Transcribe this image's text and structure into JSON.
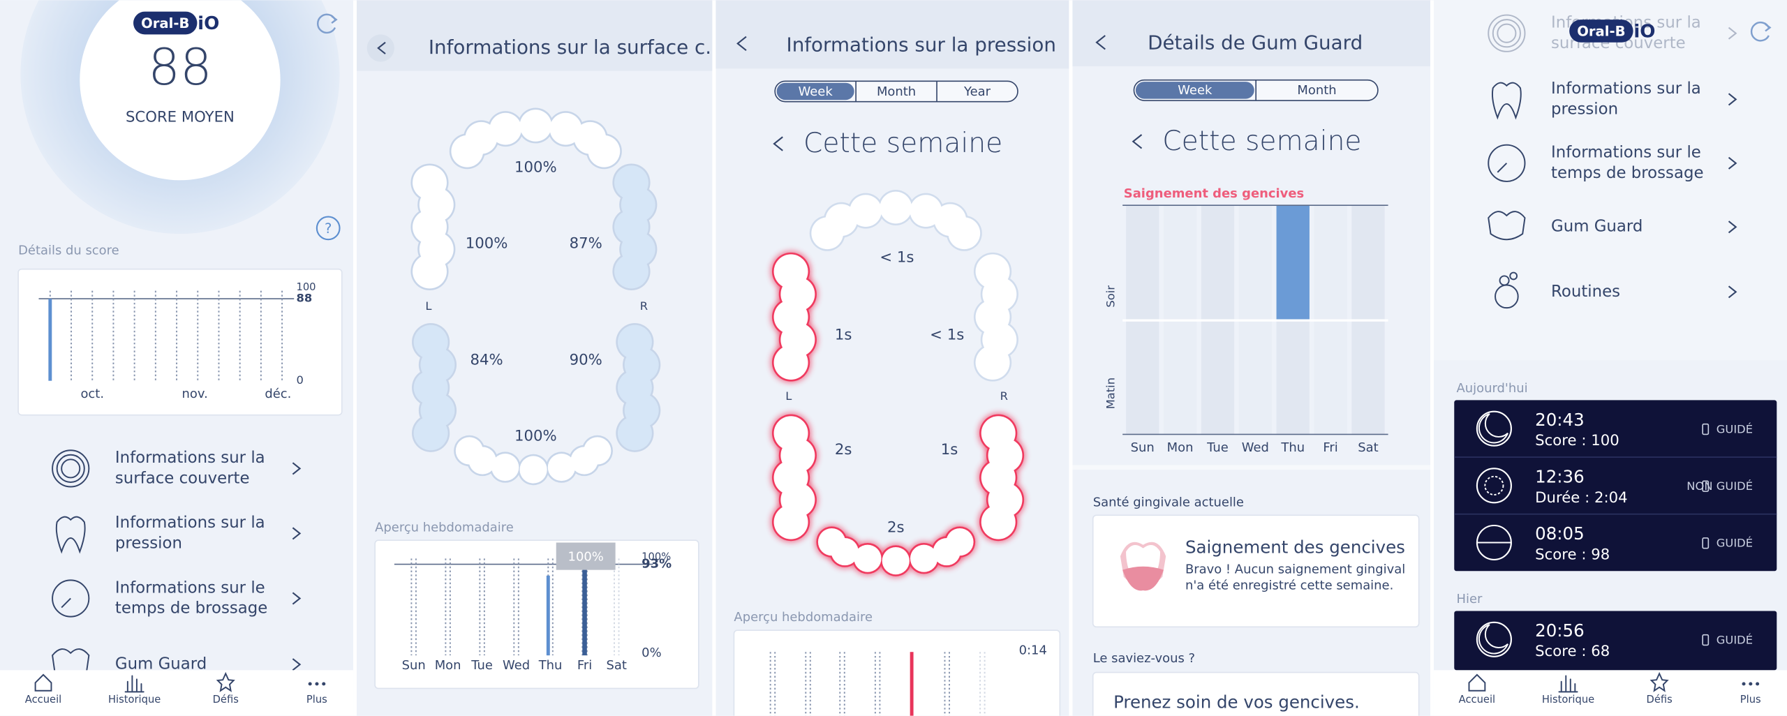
{
  "home": {
    "logo": "Oral-B",
    "logo_suffix": "iO",
    "score": "88",
    "score_label": "SCORE MOYEN",
    "help": "?",
    "details_title": "Détails du score",
    "chart": {
      "top": "100",
      "current": "88",
      "bottom": "0",
      "months": [
        "oct.",
        "nov.",
        "déc."
      ]
    },
    "menu": [
      [
        "Informations sur la",
        "surface couverte"
      ],
      [
        "Informations sur la",
        "pression"
      ],
      [
        "Informations sur le",
        "temps de brossage"
      ],
      [
        "Gum Guard"
      ]
    ]
  },
  "nav": [
    "Accueil",
    "Historique",
    "Défis",
    "Plus"
  ],
  "surface": {
    "title": "Informations sur la surface c...",
    "zones": {
      "upper_front": "100%",
      "upper_left": "100%",
      "upper_right": "87%",
      "lower_left": "84%",
      "lower_right": "90%",
      "lower_front": "100%"
    },
    "left": "L",
    "right": "R",
    "weekly_title": "Aperçu hebdomadaire",
    "days": [
      "Sun",
      "Mon",
      "Tue",
      "Wed",
      "Thu",
      "Fri",
      "Sat"
    ],
    "tooltip": "100%",
    "top": "100%",
    "current": "93%",
    "bottom": "0%"
  },
  "pressure": {
    "title": "Informations sur la pression",
    "tabs": [
      "Week",
      "Month",
      "Year"
    ],
    "period": "Cette semaine",
    "zones": {
      "upper_front": "< 1s",
      "upper_left": "1s",
      "upper_right": "< 1s",
      "lower_left": "2s",
      "lower_right": "1s",
      "lower_front": "2s"
    },
    "left": "L",
    "right": "R",
    "weekly_title": "Aperçu hebdomadaire",
    "duration": "0:14"
  },
  "gum": {
    "title": "Détails de Gum Guard",
    "tabs": [
      "Week",
      "Month"
    ],
    "period": "Cette semaine",
    "chart_title": "Saignement des gencives",
    "rows": [
      "Soir",
      "Matin"
    ],
    "days": [
      "Sun",
      "Mon",
      "Tue",
      "Wed",
      "Thu",
      "Fri",
      "Sat"
    ],
    "status_title": "Santé gingivale actuelle",
    "status": {
      "title": "Saignement des gencives",
      "text": [
        "Bravo ! Aucun saignement gingival",
        "n'a été enregistré cette semaine."
      ]
    },
    "tip_title": "Le saviez-vous ?",
    "tip": "Prenez soin de vos gencives."
  },
  "more": {
    "logo": "Oral-B",
    "logo_suffix": "iO",
    "menu": [
      [
        "Informations sur la",
        "surface couverte"
      ],
      [
        "Informations sur la",
        "pression"
      ],
      [
        "Informations sur le",
        "temps de brossage"
      ],
      [
        "Gum Guard"
      ],
      [
        "Routines"
      ]
    ],
    "today": "Aujourd'hui",
    "sessions": [
      {
        "time": "20:43",
        "detail": "Score : 100",
        "mode": "GUIDÉ"
      },
      {
        "time": "12:36",
        "detail": "Durée : 2:04",
        "mode": "NON GUIDÉ"
      },
      {
        "time": "08:05",
        "detail": "Score : 98",
        "mode": "GUIDÉ"
      }
    ],
    "yesterday": "Hier",
    "yesterday_sessions": [
      {
        "time": "20:56",
        "detail": "Score : 68",
        "mode": "GUIDÉ"
      }
    ]
  }
}
